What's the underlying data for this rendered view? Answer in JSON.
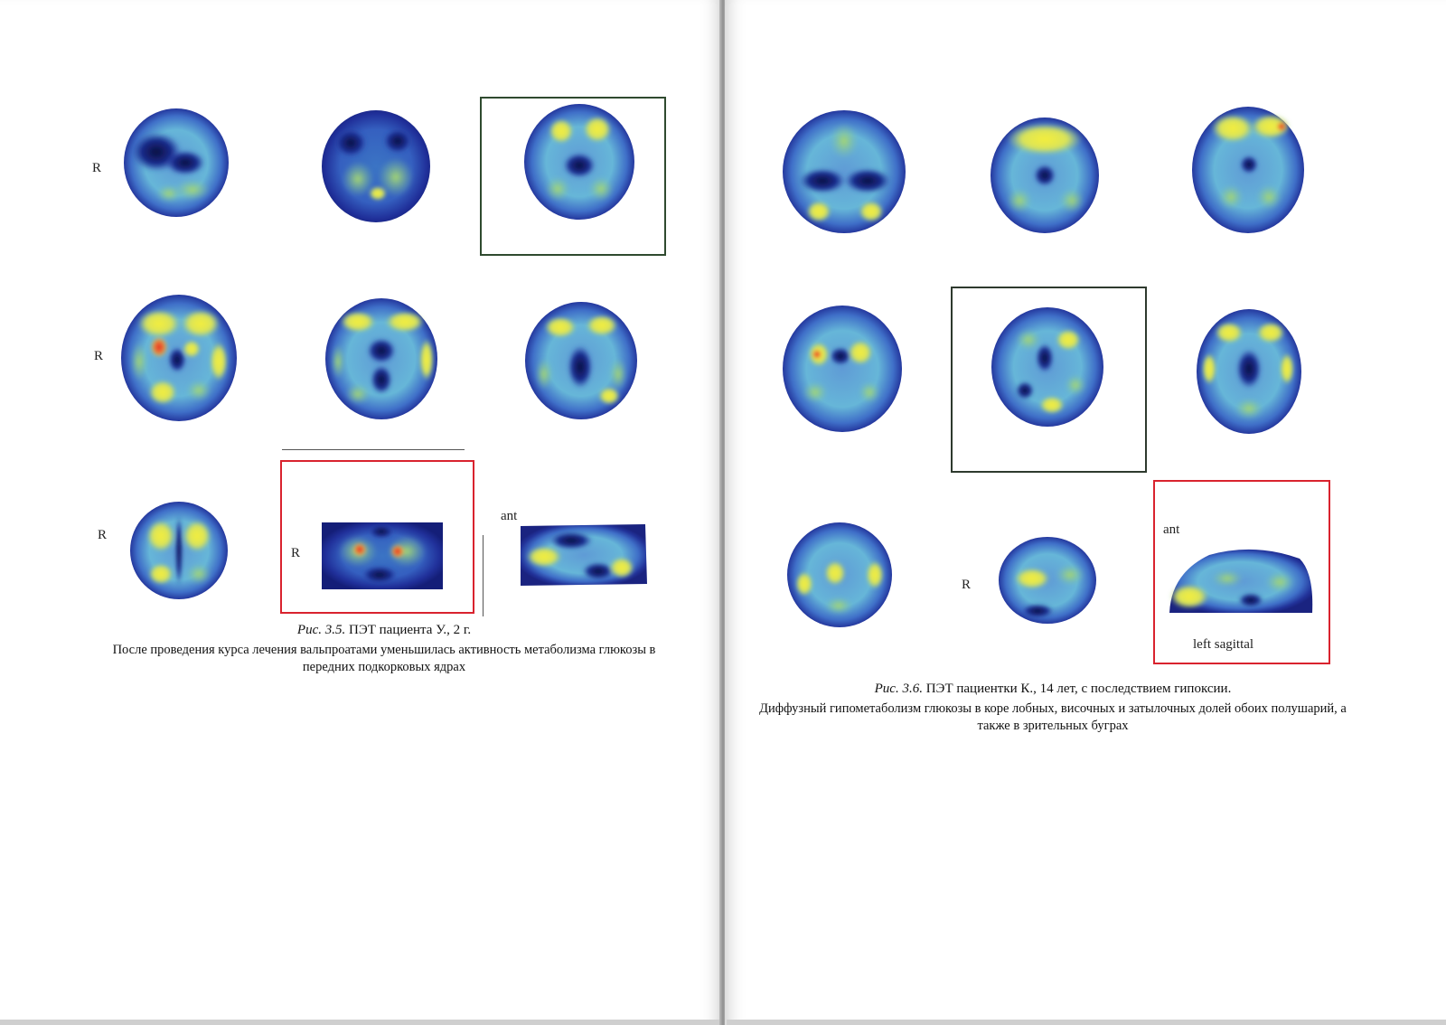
{
  "left_page": {
    "labels": {
      "r_row1": "R",
      "r_row2": "R",
      "r_row3": "R",
      "r_coronal": "R",
      "ant": "ant"
    },
    "caption": {
      "fig_prefix": "Рис. 3.5.",
      "fig_title": " ПЭТ пациента У., 2 г.",
      "body": "После проведения курса лечения вальпроатами уменьшилась активность метаболизма глюкозы в передних подкорковых ядрах"
    }
  },
  "right_page": {
    "labels": {
      "ant": "ant",
      "r_row3": "R",
      "left_sagittal": "left sagittal"
    },
    "caption": {
      "fig_prefix": "Рис. 3.6.",
      "fig_title": " ПЭТ пациентки К., 14 лет, с последствием гипоксии.",
      "body": "Диффузный гипометаболизм глюкозы в коре лобных, височных и затылочных долей обоих полушарий, а также в зрительных буграх"
    }
  },
  "colors": {
    "frame_red": "#d9232e",
    "frame_green": "#2f4a2f",
    "pet_low": "#1a2a8c",
    "pet_mid": "#6fb4e0",
    "pet_high": "#f2ec3a",
    "pet_peak": "#e0262a"
  }
}
